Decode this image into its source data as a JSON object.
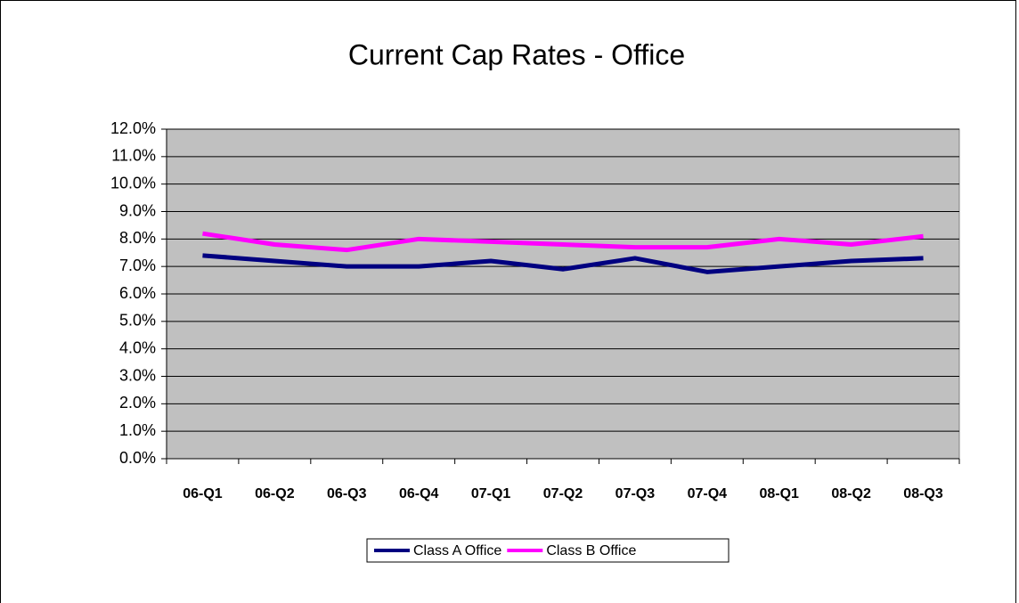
{
  "chart_data": {
    "type": "line",
    "title": "Current Cap Rates - Office",
    "categories": [
      "06-Q1",
      "06-Q2",
      "06-Q3",
      "06-Q4",
      "07-Q1",
      "07-Q2",
      "07-Q3",
      "07-Q4",
      "08-Q1",
      "08-Q2",
      "08-Q3"
    ],
    "series": [
      {
        "name": "Class A Office",
        "color": "#000080",
        "values": [
          7.4,
          7.2,
          7.0,
          7.0,
          7.2,
          6.9,
          7.3,
          6.8,
          7.0,
          7.2,
          7.3
        ]
      },
      {
        "name": "Class B Office",
        "color": "#ff00ff",
        "values": [
          8.2,
          7.8,
          7.6,
          8.0,
          7.9,
          7.8,
          7.7,
          7.7,
          8.0,
          7.8,
          8.1
        ]
      }
    ],
    "ylim": [
      0,
      12
    ],
    "yticks": [
      {
        "value": 0,
        "label": "0.0%"
      },
      {
        "value": 1,
        "label": "1.0%"
      },
      {
        "value": 2,
        "label": "2.0%"
      },
      {
        "value": 3,
        "label": "3.0%"
      },
      {
        "value": 4,
        "label": "4.0%"
      },
      {
        "value": 5,
        "label": "5.0%"
      },
      {
        "value": 6,
        "label": "6.0%"
      },
      {
        "value": 7,
        "label": "7.0%"
      },
      {
        "value": 8,
        "label": "8.0%"
      },
      {
        "value": 9,
        "label": "9.0%"
      },
      {
        "value": 10,
        "label": "10.0%"
      },
      {
        "value": 11,
        "label": "11.0%"
      },
      {
        "value": 12,
        "label": "12.0%"
      }
    ],
    "grid": true,
    "legend": "bottom"
  }
}
